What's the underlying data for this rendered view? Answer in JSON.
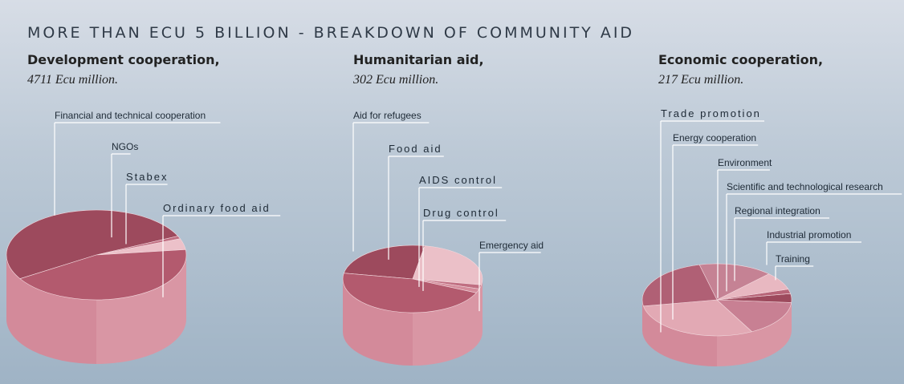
{
  "title": "MORE THAN ECU 5 BILLION - BREAKDOWN OF COMMUNITY AID",
  "colors": {
    "top_dark": "#9b4a5c",
    "top_light": "#e5b1bb",
    "side_base": "#d996a4",
    "side_shadow": "#c87689",
    "leader_line": "#ffffff"
  },
  "sections": [
    {
      "title": "Development cooperation,",
      "subtitle": "4711 Ecu million."
    },
    {
      "title": "Humanitarian aid,",
      "subtitle": "302 Ecu million."
    },
    {
      "title": "Economic cooperation,",
      "subtitle": "217 Ecu million."
    }
  ],
  "chart_data": [
    {
      "type": "pie",
      "title": "Development cooperation,",
      "subtitle": "4711 Ecu million.",
      "slices": [
        {
          "label": "Financial and technical cooperation",
          "value": 52
        },
        {
          "label": "NGOs",
          "value": 1
        },
        {
          "label": "Stabex",
          "value": 4
        },
        {
          "label": "Ordinary food aid",
          "value": 43
        }
      ]
    },
    {
      "type": "pie",
      "title": "Humanitarian aid,",
      "subtitle": "302 Ecu million.",
      "slices": [
        {
          "label": "Aid for refugees",
          "value": 25
        },
        {
          "label": "Food aid",
          "value": 25
        },
        {
          "label": "AIDS control",
          "value": 2
        },
        {
          "label": "Drug control",
          "value": 2
        },
        {
          "label": "Emergency aid",
          "value": 46
        }
      ]
    },
    {
      "type": "pie",
      "title": "Economic cooperation,",
      "subtitle": "217 Ecu million.",
      "slices": [
        {
          "label": "Trade promotion",
          "value": 30
        },
        {
          "label": "Energy cooperation",
          "value": 16
        },
        {
          "label": "Environment",
          "value": 4
        },
        {
          "label": "Scientific and technological research",
          "value": 2
        },
        {
          "label": "Regional integration",
          "value": 8
        },
        {
          "label": "Industrial promotion",
          "value": 16
        },
        {
          "label": "Training",
          "value": 24
        }
      ]
    }
  ]
}
